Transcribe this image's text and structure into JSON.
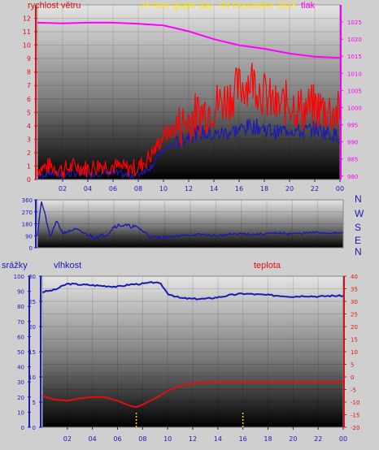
{
  "top": {
    "title": "24 hour graph day : 04 December 2023",
    "left_label": "rychlost větru",
    "right_label": "tlak"
  },
  "wind_dir": {
    "compass": [
      "N",
      "W",
      "S",
      "E",
      "N"
    ]
  },
  "bottom": {
    "rain_label": "srážky",
    "humidity_label": "vlhkost",
    "temp_label": "teplota"
  },
  "colors": {
    "wind": "#ff0000",
    "gust": "#1a1ab4",
    "pressure": "#ff00ff",
    "direction": "#1a1ab4",
    "humidity": "#1a1ab4",
    "temperature": "#e01010",
    "rain": "#ffd700",
    "axis_blue": "#1a1ab4",
    "axis_red": "#e01010",
    "axis_magenta": "#ff00ff"
  },
  "chart_data": [
    {
      "type": "line",
      "name": "wind-pressure",
      "x_ticks": [
        "02",
        "04",
        "06",
        "08",
        "10",
        "12",
        "14",
        "16",
        "18",
        "20",
        "22",
        "00"
      ],
      "xlim": [
        0,
        24
      ],
      "left_axis": {
        "label": "rychlost větru",
        "ylim": [
          0,
          13
        ],
        "ticks": [
          0,
          1,
          2,
          3,
          4,
          5,
          6,
          7,
          8,
          9,
          10,
          11,
          12
        ]
      },
      "right_axis": {
        "label": "tlak",
        "ylim": [
          979,
          1030
        ],
        "ticks": [
          980,
          985,
          990,
          995,
          1000,
          1005,
          1010,
          1015,
          1020,
          1025
        ]
      },
      "series": [
        {
          "name": "gust",
          "axis": "left",
          "x": [
            0,
            1,
            2,
            3,
            4,
            5,
            6,
            7,
            8,
            9,
            9.5,
            10,
            11,
            12,
            13,
            14,
            15,
            16,
            17,
            18,
            19,
            20,
            21,
            22,
            23,
            24
          ],
          "y": [
            0.8,
            1.0,
            0.7,
            1.0,
            0.8,
            1.1,
            1.0,
            0.8,
            0.9,
            1.8,
            2.5,
            3.3,
            3.8,
            4.5,
            5.0,
            5.5,
            6.0,
            6.8,
            7.5,
            6.3,
            5.3,
            5.8,
            5.2,
            5.4,
            5.2,
            4.8
          ]
        },
        {
          "name": "wind",
          "axis": "left",
          "x": [
            0,
            1,
            2,
            3,
            4,
            5,
            6,
            7,
            8,
            9,
            9.5,
            10,
            11,
            12,
            13,
            14,
            15,
            16,
            17,
            18,
            19,
            20,
            21,
            22,
            23,
            24
          ],
          "y": [
            0.3,
            0.5,
            0.3,
            0.5,
            0.4,
            0.5,
            0.5,
            0.3,
            0.4,
            1.0,
            1.6,
            2.2,
            2.7,
            3.3,
            3.5,
            3.3,
            3.5,
            3.7,
            4.0,
            3.8,
            3.5,
            3.8,
            3.5,
            3.8,
            3.5,
            3.2
          ]
        },
        {
          "name": "pressure",
          "axis": "right",
          "x": [
            0,
            2,
            4,
            6,
            8,
            10,
            12,
            14,
            16,
            18,
            20,
            22,
            24
          ],
          "y": [
            1024.8,
            1024.6,
            1024.8,
            1024.8,
            1024.5,
            1024.0,
            1022.3,
            1020.0,
            1018.2,
            1017.2,
            1015.8,
            1014.9,
            1014.5
          ]
        }
      ]
    },
    {
      "type": "line",
      "name": "wind-direction",
      "x_ticks": [
        "02",
        "04",
        "06",
        "08",
        "10",
        "12",
        "14",
        "16",
        "18",
        "20",
        "22",
        "00"
      ],
      "xlim": [
        0,
        24
      ],
      "ylim": [
        0,
        360
      ],
      "y_ticks": [
        0,
        90,
        180,
        270,
        360
      ],
      "series": [
        {
          "name": "direction",
          "x": [
            0,
            0.3,
            0.6,
            1,
            1.5,
            2,
            3,
            4,
            4.5,
            5,
            5.5,
            6,
            6.5,
            7,
            7.5,
            8,
            8.5,
            9,
            9.5,
            10,
            11,
            12,
            13,
            14,
            15,
            16,
            17,
            18,
            19,
            20,
            21,
            22,
            23,
            24
          ],
          "y": [
            100,
            350,
            250,
            80,
            200,
            110,
            140,
            95,
            80,
            90,
            100,
            160,
            170,
            165,
            160,
            145,
            110,
            80,
            75,
            80,
            90,
            95,
            100,
            90,
            100,
            105,
            100,
            105,
            110,
            105,
            110,
            115,
            110,
            110
          ]
        }
      ]
    },
    {
      "type": "line",
      "name": "humidity-temperature-rain",
      "x_ticks": [
        "02",
        "04",
        "06",
        "08",
        "10",
        "12",
        "14",
        "16",
        "18",
        "20",
        "22",
        "00"
      ],
      "xlim": [
        0,
        24
      ],
      "rain_axis": {
        "label": "srážky",
        "ylim": [
          0,
          100
        ],
        "ticks": [
          0,
          10,
          20,
          30,
          40,
          50,
          60,
          70,
          80,
          90,
          100
        ]
      },
      "humidity_axis": {
        "label": "vlhkost",
        "ylim": [
          0,
          30
        ],
        "ticks": [
          0,
          5,
          10,
          15,
          20,
          25,
          30
        ]
      },
      "temperature_axis": {
        "label": "teplota",
        "ylim": [
          -20,
          40
        ],
        "ticks": [
          -20,
          -15,
          -10,
          -5,
          0,
          5,
          10,
          15,
          20,
          25,
          30,
          35,
          40
        ]
      },
      "series": [
        {
          "name": "humidity",
          "axis": "rain",
          "x": [
            0,
            1,
            2,
            3,
            4,
            5,
            6,
            7,
            8,
            9,
            9.5,
            10,
            11,
            12,
            13,
            14,
            15,
            16,
            17,
            18,
            19,
            20,
            21,
            22,
            23,
            24
          ],
          "y": [
            89.5,
            91.0,
            95.0,
            94.5,
            94.0,
            93.5,
            93.0,
            94.5,
            95.0,
            96.0,
            94.5,
            88.5,
            85.5,
            85.0,
            85.0,
            86.0,
            87.5,
            88.5,
            88.0,
            87.5,
            87.0,
            86.5,
            87.0,
            86.5,
            87.0,
            87.0
          ]
        },
        {
          "name": "temperature",
          "axis": "temperature",
          "x": [
            0,
            1,
            2,
            3,
            4,
            5,
            6,
            7,
            7.5,
            8,
            9,
            10,
            11,
            12,
            13,
            14,
            15,
            16,
            17,
            18,
            19,
            20,
            21,
            22,
            23,
            24
          ],
          "y": [
            -7.5,
            -9.0,
            -9.5,
            -8.5,
            -8.0,
            -8.0,
            -9.5,
            -11.5,
            -12.0,
            -11.0,
            -8.5,
            -5.5,
            -3.5,
            -2.5,
            -2.0,
            -2.0,
            -2.0,
            -2.0,
            -2.0,
            -2.0,
            -2.0,
            -2.0,
            -2.0,
            -2.0,
            -2.0,
            -2.0
          ]
        },
        {
          "name": "rain",
          "axis": "rain",
          "type": "bar",
          "x": [
            7.5,
            16
          ],
          "y": [
            6,
            6
          ]
        }
      ]
    }
  ]
}
